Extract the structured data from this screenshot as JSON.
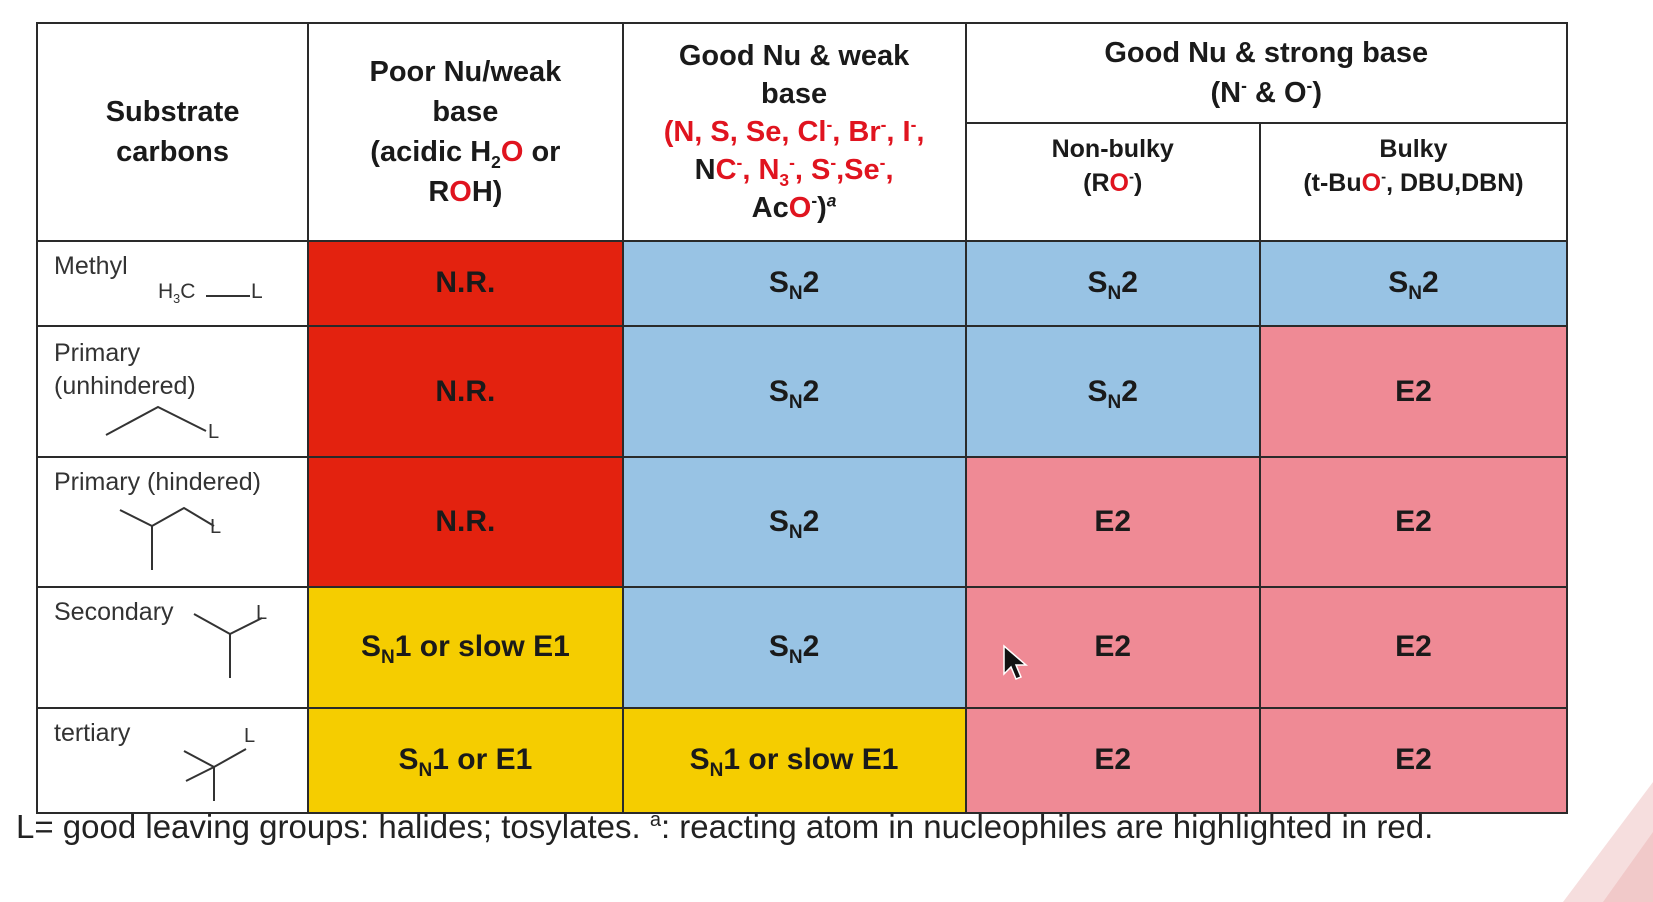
{
  "header": {
    "substrate": "Substrate carbons",
    "col1_l1": "Poor Nu/weak",
    "col1_l2": "base",
    "col1_l3_a": "(acidic H",
    "col1_l3_sub": "2",
    "col1_l3_o": "O",
    "col1_l3_b": " or",
    "col1_l4_r": "R",
    "col1_l4_o": "O",
    "col1_l4_h": "H)",
    "col2_l1": "Good Nu & weak",
    "col2_l2": "base",
    "col2_red1": "(N, S, Se, Cl",
    "col2_red1_sup": "-",
    "col2_red1_b": ", Br",
    "col2_red1_sup2": "-",
    "col2_red1_c": ", I",
    "col2_red1_sup3": "-",
    "col2_red1_d": ",",
    "col2_nc_n": "N",
    "col2_nc_c": "C",
    "col2_nc_sup": "-",
    "col2_n3": ", N",
    "col2_n3_sub": "3",
    "col2_n3_sup": "-",
    "col2_s": ", S",
    "col2_s_sup": "-",
    "col2_se": ",Se",
    "col2_se_sup": "-",
    "col2_comma": ",",
    "col2_ac": "Ac",
    "col2_ac_o": "O",
    "col2_ac_sup": "-",
    "col2_ac_close": ")",
    "col2_ac_a": "a",
    "col3_l1": "Good Nu & strong base",
    "col3_l2_a": "(N",
    "col3_l2_sup1": "-",
    "col3_l2_b": " & O",
    "col3_l2_sup2": "-",
    "col3_l2_c": ")",
    "sub_nonbulky": "Non-bulky",
    "sub_nonbulky_r": "(R",
    "sub_nonbulky_o": "O",
    "sub_nonbulky_sup": "-",
    "sub_nonbulky_close": ")",
    "sub_bulky": "Bulky",
    "sub_bulky_a": "(t-Bu",
    "sub_bulky_o": "O",
    "sub_bulky_sup": "-",
    "sub_bulky_b": ", DBU,DBN)"
  },
  "rows": [
    {
      "label": "Methyl",
      "struct_h3c": "H",
      "struct_sub": "3",
      "struct_c": "C",
      "struct_l": "L"
    },
    {
      "label_l1": "Primary",
      "label_l2": "(unhindered)",
      "struct_l": "L"
    },
    {
      "label": "Primary (hindered)",
      "struct_l": "L"
    },
    {
      "label": "Secondary",
      "struct_l": "L"
    },
    {
      "label": "tertiary",
      "struct_l": "L"
    }
  ],
  "outcomes": {
    "nr": "N.R.",
    "s": "S",
    "n": "N",
    "two": "2",
    "e2": "E2",
    "one_or_slow_e1": "1 or slow E1",
    "one_or_e1": "1 or E1"
  },
  "footnote": {
    "text_a": "L= good leaving groups: halides; tosylates. ",
    "sup": "a",
    "text_b": ": reacting atom in nucleophiles are highlighted in red."
  },
  "colors": {
    "no_reaction": "#e3220f",
    "sn2": "#98c3e4",
    "e2": "#ef8a95",
    "sn1": "#f5cd00",
    "highlight": "#e0141f"
  }
}
